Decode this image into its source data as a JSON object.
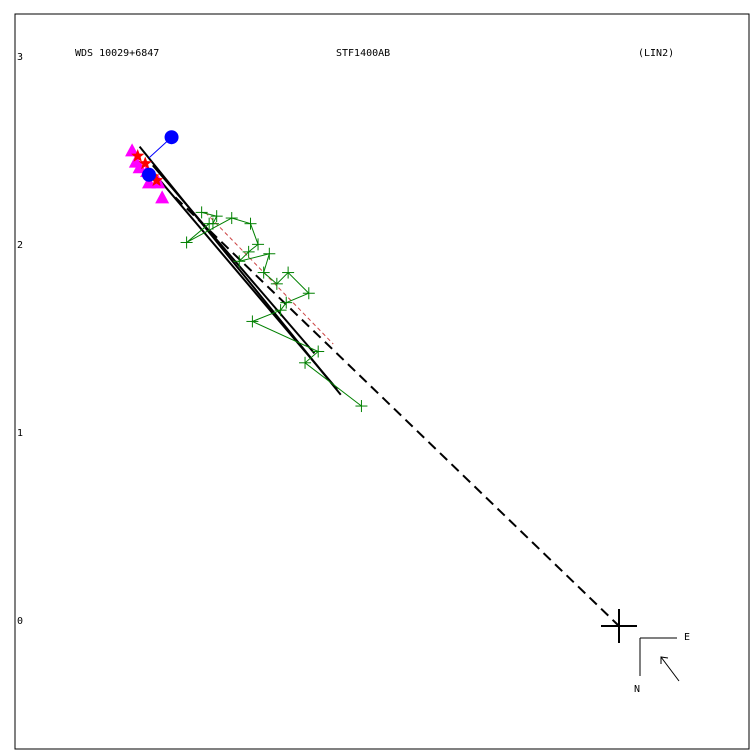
{
  "header": {
    "left": "WDS 10029+6847",
    "center": "STF1400AB",
    "right": "(LIN2)"
  },
  "compass": {
    "east": "E",
    "north": "N"
  },
  "chart_data": {
    "type": "scatter",
    "title": "",
    "xlabel": "",
    "ylabel": "",
    "ylim": [
      -0.65,
      3.25
    ],
    "yticks": [
      0,
      1,
      2,
      3
    ],
    "grid": false,
    "origin": [
      0,
      0
    ],
    "series": [
      {
        "marker": "plus",
        "color": "#008000",
        "points": [
          [
            -2.22,
            2.2
          ],
          [
            -2.14,
            2.18
          ],
          [
            -2.16,
            2.14
          ],
          [
            -2.18,
            2.14
          ],
          [
            -2.3,
            2.04
          ],
          [
            -2.06,
            2.17
          ],
          [
            -1.96,
            2.14
          ],
          [
            -1.92,
            2.03
          ],
          [
            -1.97,
            1.99
          ],
          [
            -2.02,
            1.94
          ],
          [
            -1.86,
            1.98
          ],
          [
            -1.89,
            1.88
          ],
          [
            -1.82,
            1.82
          ],
          [
            -1.76,
            1.88
          ],
          [
            -1.65,
            1.77
          ],
          [
            -1.77,
            1.72
          ],
          [
            -1.8,
            1.68
          ],
          [
            -1.95,
            1.62
          ],
          [
            -1.6,
            1.46
          ],
          [
            -1.67,
            1.4
          ],
          [
            -1.37,
            1.17
          ]
        ]
      },
      {
        "marker": "triangle",
        "color": "#ff00ff",
        "points": [
          [
            -2.59,
            2.53
          ],
          [
            -2.57,
            2.47
          ],
          [
            -2.55,
            2.44
          ],
          [
            -2.51,
            2.42
          ],
          [
            -2.5,
            2.36
          ],
          [
            -2.45,
            2.36
          ],
          [
            -2.43,
            2.28
          ]
        ]
      },
      {
        "marker": "star",
        "color": "#ff0000",
        "points": [
          [
            -2.56,
            2.5
          ],
          [
            -2.52,
            2.46
          ],
          [
            -2.48,
            2.39
          ],
          [
            -2.46,
            2.37
          ]
        ]
      },
      {
        "marker": "circle",
        "color": "#0000ff",
        "points": [
          [
            -2.5,
            2.4
          ],
          [
            -2.38,
            2.6
          ]
        ]
      }
    ],
    "lines": [
      {
        "style": "solid",
        "color": "#000000",
        "from": [
          -2.55,
          2.55
        ],
        "to": [
          -1.48,
          1.23
        ]
      },
      {
        "style": "solid",
        "color": "#000000",
        "from": [
          -2.45,
          2.38
        ],
        "to": [
          -1.5,
          1.26
        ]
      },
      {
        "style": "solid",
        "color": "#000000",
        "from": [
          -2.48,
          2.45
        ],
        "to": [
          -1.62,
          1.45
        ]
      },
      {
        "style": "dashed",
        "color": "#000000",
        "from": [
          -2.36,
          2.28
        ],
        "to": [
          0.0,
          0.0
        ]
      },
      {
        "style": "dashed",
        "color": "#cc4444",
        "from": [
          -2.2,
          2.2
        ],
        "to": [
          -1.52,
          1.5
        ]
      },
      {
        "style": "solid",
        "color": "#0000ff",
        "from": [
          -2.5,
          2.49
        ],
        "to": [
          -2.38,
          2.6
        ]
      }
    ]
  }
}
